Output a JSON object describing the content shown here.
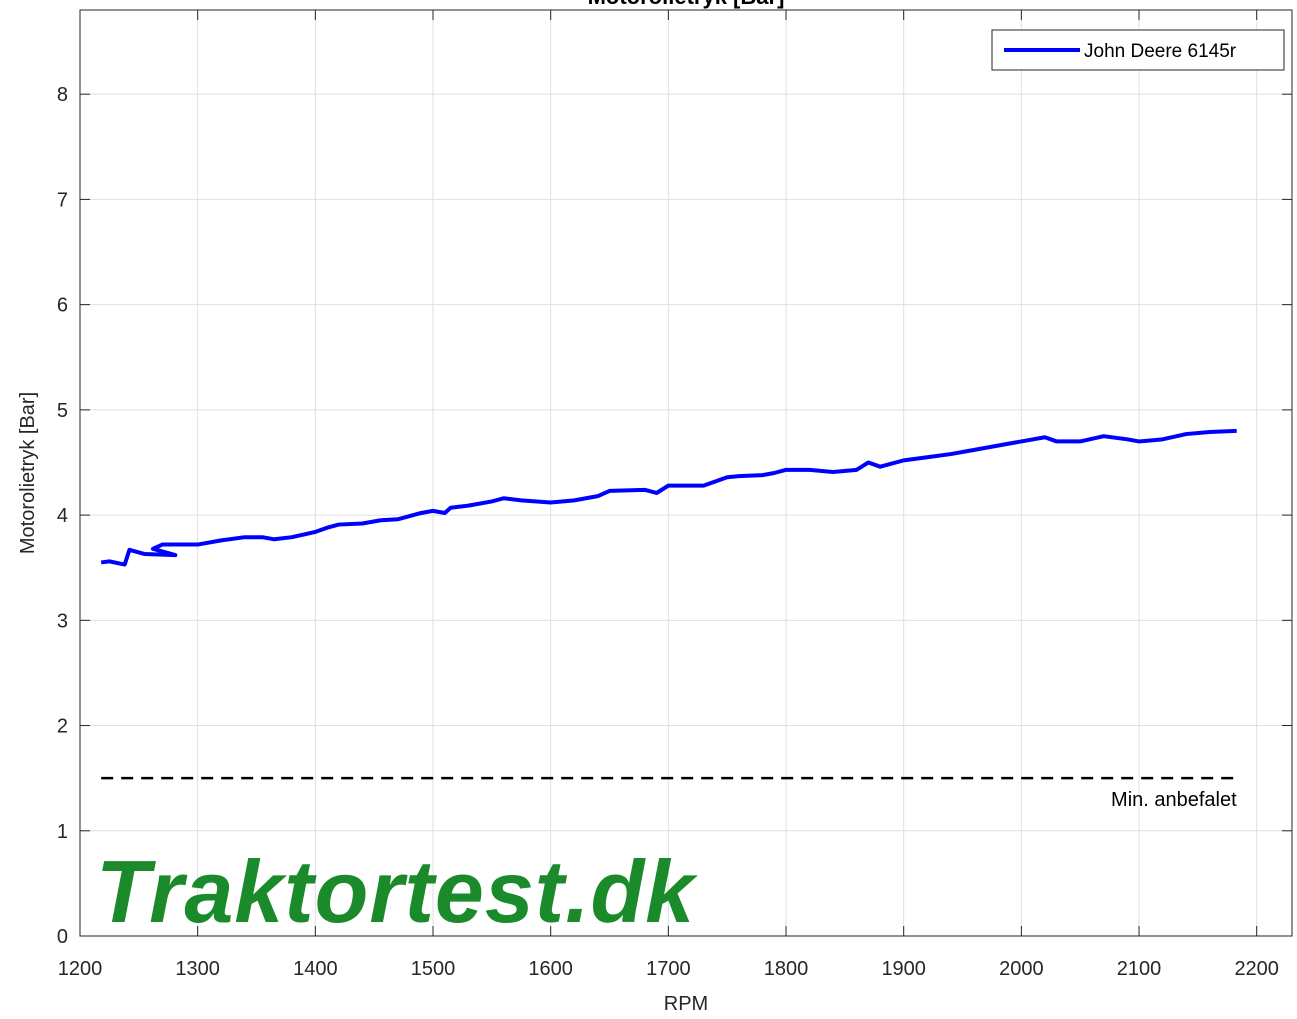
{
  "chart_data": {
    "type": "line",
    "title": "Motorolietryk [Bar]",
    "xlabel": "RPM",
    "ylabel": "Motorolietryk [Bar]",
    "xlim": [
      1200,
      2230
    ],
    "ylim": [
      0,
      8.8
    ],
    "xticks": [
      1200,
      1300,
      1400,
      1500,
      1600,
      1700,
      1800,
      1900,
      2000,
      2100,
      2200
    ],
    "yticks": [
      0,
      1,
      2,
      3,
      4,
      5,
      6,
      7,
      8
    ],
    "grid": true,
    "legend": "upper right",
    "series": [
      {
        "name": "John Deere 6145r",
        "color": "#0000ff",
        "x": [
          1218,
          1225,
          1238,
          1242,
          1255,
          1281,
          1262,
          1270,
          1300,
          1320,
          1340,
          1355,
          1365,
          1380,
          1400,
          1410,
          1420,
          1440,
          1455,
          1470,
          1490,
          1500,
          1510,
          1515,
          1530,
          1550,
          1560,
          1575,
          1600,
          1620,
          1640,
          1650,
          1680,
          1690,
          1700,
          1730,
          1750,
          1760,
          1780,
          1790,
          1800,
          1820,
          1840,
          1860,
          1870,
          1880,
          1900,
          1920,
          1940,
          1960,
          1980,
          2000,
          2020,
          2030,
          2050,
          2070,
          2090,
          2100,
          2120,
          2140,
          2160,
          2183
        ],
        "values": [
          3.55,
          3.56,
          3.53,
          3.67,
          3.63,
          3.62,
          3.68,
          3.72,
          3.72,
          3.76,
          3.79,
          3.79,
          3.77,
          3.79,
          3.84,
          3.88,
          3.91,
          3.92,
          3.95,
          3.96,
          4.02,
          4.04,
          4.02,
          4.07,
          4.09,
          4.13,
          4.16,
          4.14,
          4.12,
          4.14,
          4.18,
          4.23,
          4.24,
          4.21,
          4.28,
          4.28,
          4.36,
          4.37,
          4.38,
          4.4,
          4.43,
          4.43,
          4.41,
          4.43,
          4.5,
          4.46,
          4.52,
          4.55,
          4.58,
          4.62,
          4.66,
          4.7,
          4.74,
          4.7,
          4.7,
          4.75,
          4.72,
          4.7,
          4.72,
          4.77,
          4.79,
          4.8
        ]
      }
    ],
    "reference_line": {
      "value": 1.5,
      "label": "Min. anbefalet",
      "color": "#000000"
    },
    "watermark": "Traktortest.dk"
  }
}
